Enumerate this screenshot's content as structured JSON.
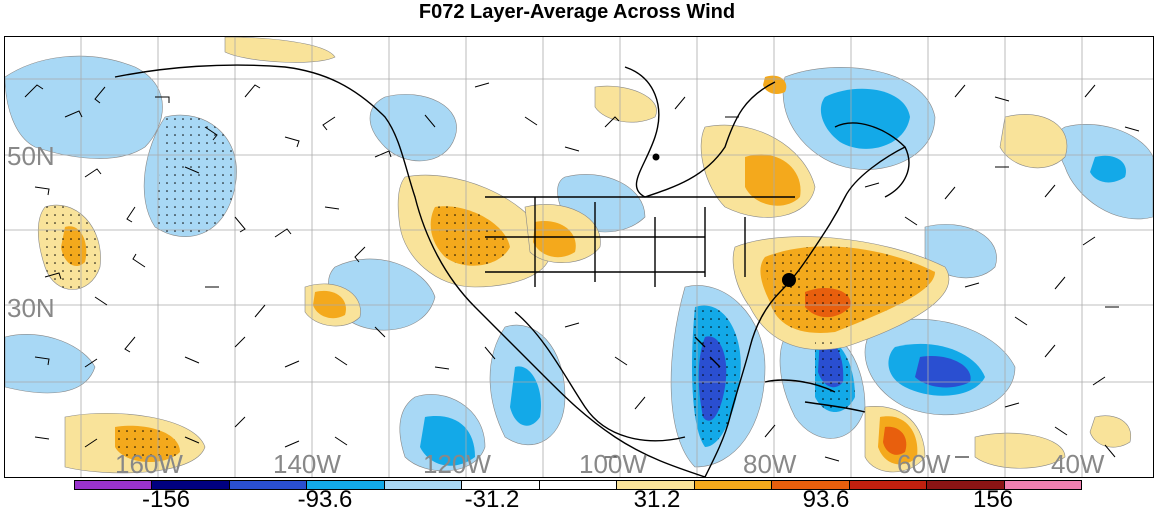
{
  "title": "F072 Layer-Average Across Wind",
  "lat_labels": [
    "50N",
    "30N"
  ],
  "lon_labels": [
    "160W",
    "140W",
    "120W",
    "100W",
    "80W",
    "60W",
    "40W"
  ],
  "colorbar": {
    "colors": [
      "#9933cc",
      "#000080",
      "#2a4fd1",
      "#13a9e8",
      "#a8d8f5",
      "#ffffff",
      "#ffffff",
      "#f9e39a",
      "#f4a91c",
      "#e85f0d",
      "#c0200f",
      "#8b1414",
      "#f080b0"
    ],
    "labels": [
      "-156",
      "-93.6",
      "-31.2",
      "31.2",
      "93.6",
      "156"
    ]
  },
  "markers": {
    "dot_color": "#000000"
  }
}
